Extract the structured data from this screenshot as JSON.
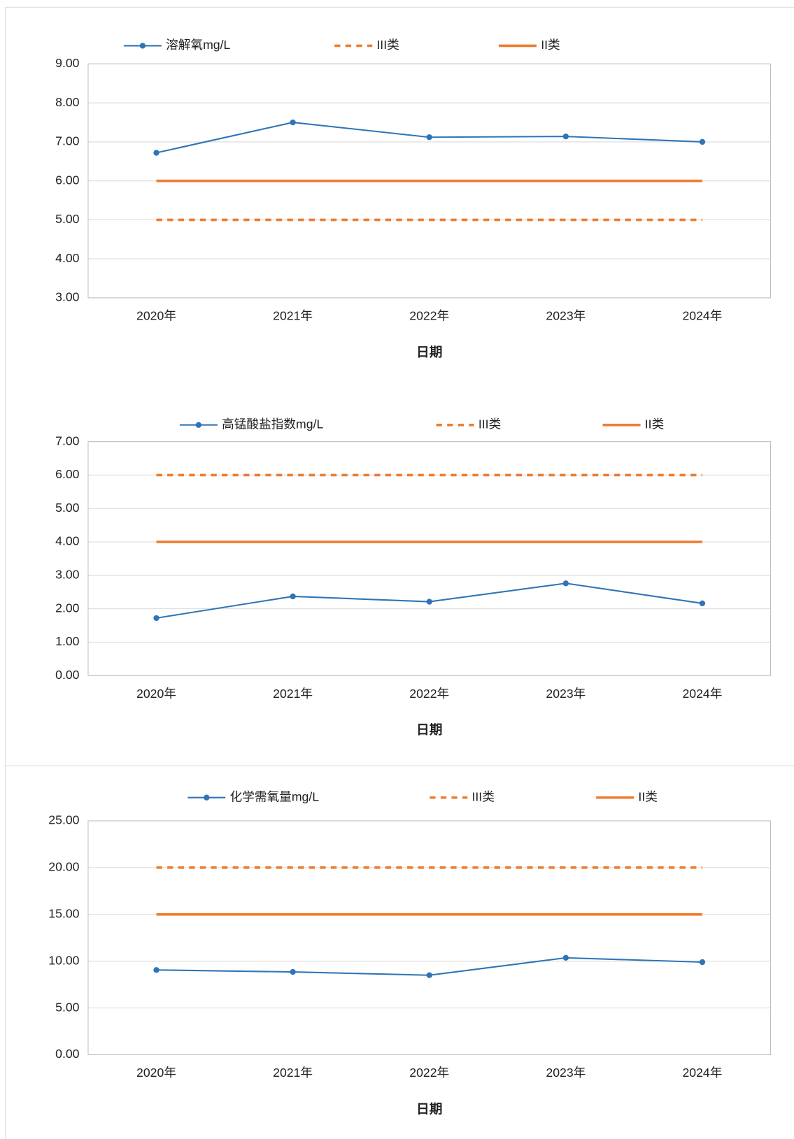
{
  "chart_data": [
    {
      "type": "line",
      "x_label": "日期",
      "categories": [
        "2020年",
        "2021年",
        "2022年",
        "2023年",
        "2024年"
      ],
      "series": [
        {
          "name": "溶解氧mg/L",
          "color": "#2e75b6",
          "line_style": "solid",
          "marker": "circle",
          "values": [
            6.72,
            7.5,
            7.12,
            7.14,
            7.0
          ]
        },
        {
          "name": "III类",
          "color": "#ed7d31",
          "line_style": "dashed",
          "values": [
            5,
            5,
            5,
            5,
            5
          ]
        },
        {
          "name": "II类",
          "color": "#ed7d31",
          "line_style": "solid",
          "values": [
            6,
            6,
            6,
            6,
            6
          ]
        }
      ],
      "ylim": [
        3,
        9
      ],
      "yticks": [
        {
          "value": 3,
          "label": "3.00"
        },
        {
          "value": 4,
          "label": "4.00"
        },
        {
          "value": 5,
          "label": "5.00"
        },
        {
          "value": 6,
          "label": "6.00"
        },
        {
          "value": 7,
          "label": "7.00"
        },
        {
          "value": 8,
          "label": "8.00"
        },
        {
          "value": 9,
          "label": "9.00"
        }
      ],
      "grid": true,
      "legend": "top"
    },
    {
      "type": "line",
      "x_label": "日期",
      "categories": [
        "2020年",
        "2021年",
        "2022年",
        "2023年",
        "2024年"
      ],
      "series": [
        {
          "name": "高锰酸盐指数mg/L",
          "color": "#2e75b6",
          "line_style": "solid",
          "marker": "circle",
          "values": [
            1.72,
            2.37,
            2.21,
            2.76,
            2.16
          ]
        },
        {
          "name": "III类",
          "color": "#ed7d31",
          "line_style": "dashed",
          "values": [
            6,
            6,
            6,
            6,
            6
          ]
        },
        {
          "name": "II类",
          "color": "#ed7d31",
          "line_style": "solid",
          "values": [
            4,
            4,
            4,
            4,
            4
          ]
        }
      ],
      "ylim": [
        0,
        7
      ],
      "yticks": [
        {
          "value": 0,
          "label": "0.00"
        },
        {
          "value": 1,
          "label": "1.00"
        },
        {
          "value": 2,
          "label": "2.00"
        },
        {
          "value": 3,
          "label": "3.00"
        },
        {
          "value": 4,
          "label": "4.00"
        },
        {
          "value": 5,
          "label": "5.00"
        },
        {
          "value": 6,
          "label": "6.00"
        },
        {
          "value": 7,
          "label": "7.00"
        }
      ],
      "grid": true,
      "legend": "top"
    },
    {
      "type": "line",
      "x_label": "日期",
      "categories": [
        "2020年",
        "2021年",
        "2022年",
        "2023年",
        "2024年"
      ],
      "series": [
        {
          "name": "化学需氧量mg/L",
          "color": "#2e75b6",
          "line_style": "solid",
          "marker": "circle",
          "values": [
            9.06,
            8.85,
            8.5,
            10.36,
            9.9
          ]
        },
        {
          "name": "III类",
          "color": "#ed7d31",
          "line_style": "dashed",
          "values": [
            20,
            20,
            20,
            20,
            20
          ]
        },
        {
          "name": "II类",
          "color": "#ed7d31",
          "line_style": "solid",
          "values": [
            15,
            15,
            15,
            15,
            15
          ]
        }
      ],
      "ylim": [
        0,
        25
      ],
      "yticks": [
        {
          "value": 0,
          "label": "0.00"
        },
        {
          "value": 5,
          "label": "5.00"
        },
        {
          "value": 10,
          "label": "10.00"
        },
        {
          "value": 15,
          "label": "15.00"
        },
        {
          "value": 20,
          "label": "20.00"
        },
        {
          "value": 25,
          "label": "25.00"
        }
      ],
      "grid": true,
      "legend": "top"
    }
  ]
}
